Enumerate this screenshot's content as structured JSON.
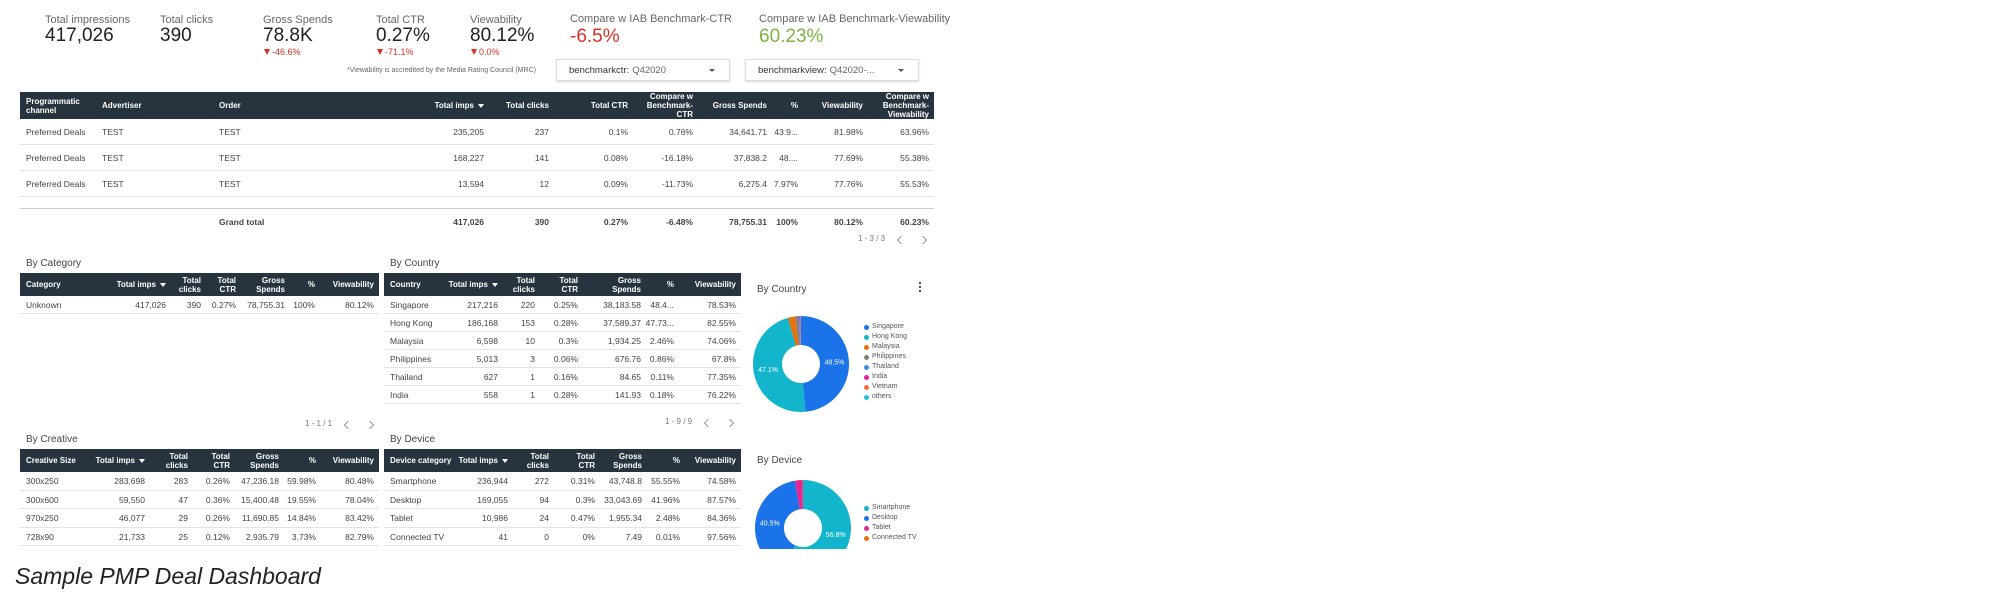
{
  "kpis": [
    {
      "label": "Total impressions",
      "value": "417,026"
    },
    {
      "label": "Total clicks",
      "value": "390"
    },
    {
      "label": "Gross Spends",
      "value": "78.8K",
      "delta": "-46.6%"
    },
    {
      "label": "Total CTR",
      "value": "0.27%",
      "delta": "-71.1%"
    },
    {
      "label": "Viewability",
      "value": "80.12%",
      "delta": "0.0%"
    },
    {
      "label": "Compare w IAB Benchmark-CTR",
      "value": "-6.5%",
      "color": "#d93025"
    },
    {
      "label": "Compare w IAB Benchmark-Viewability",
      "value": "60.23%",
      "color": "#7cb342"
    }
  ],
  "note": "*Viewability is accredited by the Media Rating Council (MRC)",
  "filters": [
    {
      "label": "benchmarkctr:",
      "value": "Q42020"
    },
    {
      "label": "benchmarkview:",
      "value": "Q42020-..."
    }
  ],
  "main_table": {
    "columns": [
      "Programmatic channel",
      "Advertiser",
      "Order",
      "Total imps",
      "Total clicks",
      "Total CTR",
      "Compare w Benchmark-CTR",
      "Gross Spends",
      "%",
      "Viewability",
      "Compare w Benchmark-Viewability"
    ],
    "rows": [
      [
        "Preferred Deals",
        "TEST",
        "TEST",
        "235,205",
        "237",
        "0.1%",
        "0.76%",
        "34,641.71",
        "43.9...",
        "81.98%",
        "63.96%"
      ],
      [
        "Preferred Deals",
        "TEST",
        "TEST",
        "168,227",
        "141",
        "0.08%",
        "-16.18%",
        "37,838.2",
        "48....",
        "77.69%",
        "55.38%"
      ],
      [
        "Preferred Deals",
        "TEST",
        "TEST",
        "13,594",
        "12",
        "0.09%",
        "-11.73%",
        "6,275.4",
        "7.97%",
        "77.76%",
        "55.53%"
      ]
    ],
    "total": {
      "label": "Grand total",
      "values": [
        "417,026",
        "390",
        "0.27%",
        "-6.48%",
        "78,755.31",
        "100%",
        "80.12%",
        "60.23%"
      ]
    },
    "pagination": "1 - 3 / 3"
  },
  "by_category": {
    "title": "By Category",
    "columns": [
      "Category",
      "Total imps",
      "Total clicks",
      "Total CTR",
      "Gross Spends",
      "%",
      "Viewability"
    ],
    "rows": [
      [
        "Unknown",
        "417,026",
        "390",
        "0.27%",
        "78,755.31",
        "100%",
        "80.12%"
      ]
    ],
    "pagination": "1 - 1 / 1"
  },
  "by_country": {
    "title": "By Country",
    "columns": [
      "Country",
      "Total imps",
      "Total clicks",
      "Total CTR",
      "Gross Spends",
      "%",
      "Viewability"
    ],
    "rows": [
      [
        "Singapore",
        "217,216",
        "220",
        "0.25%",
        "38,183.58",
        "48.4...",
        "78.53%"
      ],
      [
        "Hong Kong",
        "186,168",
        "153",
        "0.28%",
        "37,589.37",
        "47.73...",
        "82.55%"
      ],
      [
        "Malaysia",
        "6,598",
        "10",
        "0.3%",
        "1,934.25",
        "2.46%",
        "74.06%"
      ],
      [
        "Philippines",
        "5,013",
        "3",
        "0.06%",
        "676.76",
        "0.86%",
        "67.8%"
      ],
      [
        "Thailand",
        "627",
        "1",
        "0.16%",
        "84.65",
        "0.11%",
        "77.35%"
      ],
      [
        "India",
        "558",
        "1",
        "0.28%",
        "141.93",
        "0.18%",
        "76.22%"
      ]
    ],
    "pagination": "1 - 9 / 9"
  },
  "by_creative": {
    "title": "By Creative",
    "columns": [
      "Creative Size",
      "Total imps",
      "Total clicks",
      "Total CTR",
      "Gross Spends",
      "%",
      "Viewability"
    ],
    "rows": [
      [
        "300x250",
        "283,698",
        "283",
        "0.26%",
        "47,236.18",
        "59.98%",
        "80.48%"
      ],
      [
        "300x600",
        "59,550",
        "47",
        "0.36%",
        "15,400.48",
        "19.55%",
        "78.04%"
      ],
      [
        "970x250",
        "46,077",
        "29",
        "0.26%",
        "11,690.85",
        "14.84%",
        "83.42%"
      ],
      [
        "728x90",
        "21,733",
        "25",
        "0.12%",
        "2,935.79",
        "3.73%",
        "82.79%"
      ]
    ]
  },
  "by_device": {
    "title": "By Device",
    "columns": [
      "Device category",
      "Total imps",
      "Total clicks",
      "Total CTR",
      "Gross Spends",
      "%",
      "Viewability"
    ],
    "rows": [
      [
        "Smartphone",
        "236,944",
        "272",
        "0.31%",
        "43,748.8",
        "55.55%",
        "74.58%"
      ],
      [
        "Desktop",
        "169,055",
        "94",
        "0.3%",
        "33,043.69",
        "41.96%",
        "87.57%"
      ],
      [
        "Tablet",
        "10,986",
        "24",
        "0.47%",
        "1,955.34",
        "2.48%",
        "84.36%"
      ],
      [
        "Connected TV",
        "41",
        "0",
        "0%",
        "7.49",
        "0.01%",
        "97.56%"
      ]
    ]
  },
  "country_chart": {
    "type": "pie",
    "title": "By Country",
    "categories": [
      "Singapore",
      "Hong Kong",
      "Malaysia",
      "Philippines",
      "Thailand",
      "India",
      "Vietnam",
      "others"
    ],
    "values": [
      48.5,
      47.1,
      2.4,
      1.2,
      0.3,
      0.3,
      0.1,
      0.1
    ],
    "value_labels": [
      "48.5%",
      "47.1%",
      null,
      null,
      null,
      null,
      null,
      null
    ],
    "colors": [
      "#1a73e8",
      "#12b5cb",
      "#e8710a",
      "#8a7d75",
      "#4285f4",
      "#e52592",
      "#f56e3a",
      "#24c1e0"
    ]
  },
  "device_chart": {
    "type": "pie",
    "title": "By Device",
    "categories": [
      "Smartphone",
      "Desktop",
      "Tablet",
      "Connected TV"
    ],
    "values": [
      56.8,
      40.5,
      2.6,
      0.1
    ],
    "value_labels": [
      "56.8%",
      "40.5%",
      null,
      null
    ],
    "colors": [
      "#12b5cb",
      "#1a73e8",
      "#e52592",
      "#e8710a"
    ]
  },
  "caption": "Sample PMP Deal Dashboard"
}
